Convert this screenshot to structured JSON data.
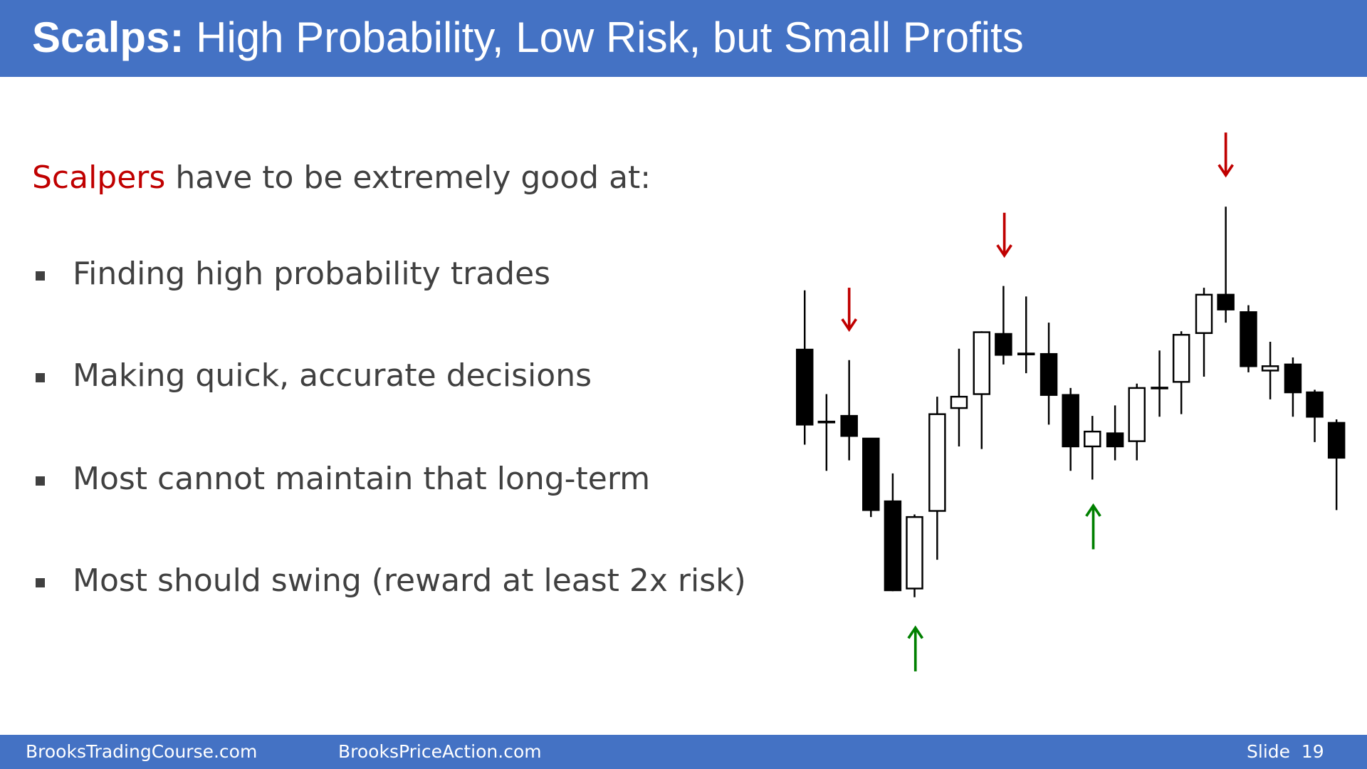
{
  "header": {
    "title_bold": "Scalps:",
    "title_rest": "High Probability, Low Risk, but Small Profits"
  },
  "intro": {
    "highlight": "Scalpers",
    "rest": "have to be extremely good at:"
  },
  "bullets": [
    "Finding high probability trades",
    "Making quick, accurate decisions",
    "Most cannot maintain that long-term",
    "Most should swing (reward at least 2x risk)"
  ],
  "footer": {
    "left": "BrooksTradingCourse.com",
    "middle": "BrooksPriceAction.com",
    "slide": "Slide  19"
  }
}
